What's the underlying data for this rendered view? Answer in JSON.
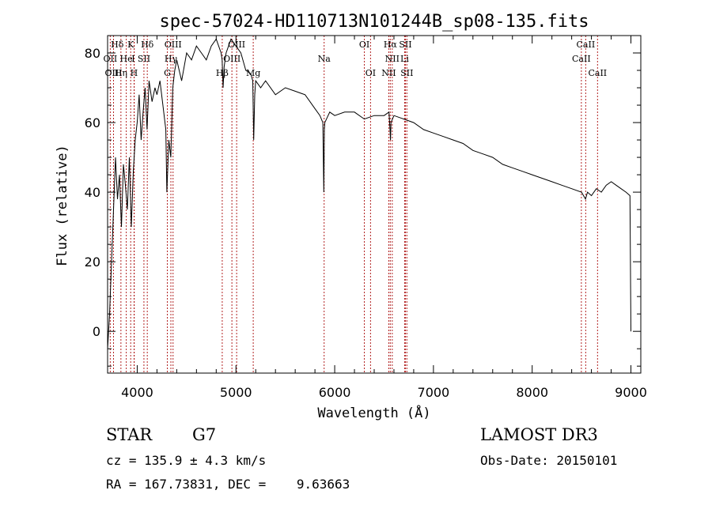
{
  "chart_data": {
    "type": "line",
    "title": "spec-57024-HD110713N101244B_sp08-135.fits",
    "xlabel": "Wavelength (Å)",
    "ylabel": "Flux (relative)",
    "xlim": [
      3700,
      9100
    ],
    "ylim": [
      -12,
      85
    ],
    "xticks": [
      4000,
      5000,
      6000,
      7000,
      8000,
      9000
    ],
    "yticks": [
      0,
      20,
      40,
      60,
      80
    ],
    "grid": false,
    "series": [
      {
        "name": "spectrum",
        "x": [
          3700,
          3720,
          3740,
          3760,
          3780,
          3800,
          3820,
          3840,
          3860,
          3880,
          3900,
          3920,
          3940,
          3960,
          3980,
          4000,
          4020,
          4040,
          4060,
          4080,
          4100,
          4120,
          4150,
          4180,
          4200,
          4230,
          4260,
          4290,
          4300,
          4320,
          4340,
          4360,
          4380,
          4400,
          4450,
          4500,
          4550,
          4600,
          4650,
          4700,
          4750,
          4800,
          4850,
          4860,
          4870,
          4880,
          4900,
          4950,
          5000,
          5050,
          5100,
          5150,
          5170,
          5180,
          5190,
          5200,
          5250,
          5300,
          5400,
          5500,
          5600,
          5700,
          5800,
          5850,
          5880,
          5890,
          5895,
          5900,
          5950,
          6000,
          6100,
          6200,
          6300,
          6400,
          6500,
          6550,
          6560,
          6565,
          6570,
          6600,
          6700,
          6800,
          6900,
          7000,
          7100,
          7200,
          7300,
          7400,
          7500,
          7600,
          7700,
          7800,
          7900,
          8000,
          8100,
          8200,
          8300,
          8400,
          8500,
          8540,
          8560,
          8600,
          8650,
          8700,
          8750,
          8800,
          8850,
          8900,
          8950,
          8990,
          9000
        ],
        "y": [
          -5,
          5,
          20,
          35,
          50,
          38,
          45,
          30,
          48,
          42,
          35,
          50,
          30,
          46,
          55,
          60,
          68,
          55,
          63,
          70,
          58,
          72,
          66,
          70,
          68,
          72,
          65,
          58,
          40,
          55,
          50,
          70,
          75,
          78,
          72,
          80,
          78,
          82,
          80,
          78,
          82,
          84,
          80,
          78,
          70,
          76,
          80,
          84,
          82,
          80,
          75,
          74,
          72,
          55,
          68,
          72,
          70,
          72,
          68,
          70,
          69,
          68,
          64,
          62,
          60,
          40,
          58,
          60,
          63,
          62,
          63,
          63,
          61,
          62,
          62,
          63,
          58,
          55,
          60,
          62,
          61,
          60,
          58,
          57,
          56,
          55,
          54,
          52,
          51,
          50,
          48,
          47,
          46,
          45,
          44,
          43,
          42,
          41,
          40,
          38,
          40,
          39,
          41,
          40,
          42,
          43,
          42,
          41,
          40,
          39,
          0
        ]
      }
    ],
    "line_markers": [
      {
        "label": "Hδ",
        "x": 4102
      },
      {
        "label": "OII",
        "x": 3727
      },
      {
        "label": "OIII",
        "x": 3760
      },
      {
        "label": "K",
        "x": 3934
      },
      {
        "label": "He",
        "x": 3889
      },
      {
        "label": "Hη",
        "x": 3835
      },
      {
        "label": "I",
        "x": 3970
      },
      {
        "label": "H",
        "x": 3968
      },
      {
        "label": "Hδ",
        "x": 4102
      },
      {
        "label": "SII",
        "x": 4068
      },
      {
        "label": "OIII",
        "x": 4363
      },
      {
        "label": "Hγ",
        "x": 4341
      },
      {
        "label": "G",
        "x": 4305
      },
      {
        "label": "OIII",
        "x": 5007
      },
      {
        "label": "OIII",
        "x": 4959
      },
      {
        "label": "Hβ",
        "x": 4861
      },
      {
        "label": "Mg",
        "x": 5175
      },
      {
        "label": "Na",
        "x": 5893
      },
      {
        "label": "OI",
        "x": 6300
      },
      {
        "label": "OI",
        "x": 6363
      },
      {
        "label": "Hα",
        "x": 6563
      },
      {
        "label": "NII",
        "x": 6548
      },
      {
        "label": "NII",
        "x": 6583
      },
      {
        "label": "SII",
        "x": 6716
      },
      {
        "label": "Li",
        "x": 6708
      },
      {
        "label": "SII",
        "x": 6731
      },
      {
        "label": "CaII",
        "x": 8498
      },
      {
        "label": "CaII",
        "x": 8542
      },
      {
        "label": "CaII",
        "x": 8662
      }
    ],
    "line_label_rows": [
      [
        {
          "label": "Hδ",
          "x": 3798
        },
        {
          "label": "K",
          "x": 3934
        },
        {
          "label": "Hδ",
          "x": 4102
        },
        {
          "label": "OIII",
          "x": 4363
        },
        {
          "label": "OIII",
          "x": 5007
        },
        {
          "label": "OI",
          "x": 6300
        },
        {
          "label": "Hα",
          "x": 6563
        },
        {
          "label": "SII",
          "x": 6716
        },
        {
          "label": "CaII",
          "x": 8542
        }
      ],
      [
        {
          "label": "OII",
          "x": 3727
        },
        {
          "label": "He",
          "x": 3889
        },
        {
          "label": "I",
          "x": 3960
        },
        {
          "label": "SII",
          "x": 4068
        },
        {
          "label": "Hγ",
          "x": 4341
        },
        {
          "label": "OIII",
          "x": 4959
        },
        {
          "label": "Na",
          "x": 5893
        },
        {
          "label": "NII",
          "x": 6583
        },
        {
          "label": "Li",
          "x": 6708
        },
        {
          "label": "CaII",
          "x": 8498
        }
      ],
      [
        {
          "label": "OIII",
          "x": 3760
        },
        {
          "label": "Hη",
          "x": 3835
        },
        {
          "label": "H",
          "x": 3968
        },
        {
          "label": "G",
          "x": 4305
        },
        {
          "label": "Hβ",
          "x": 4861
        },
        {
          "label": "Mg",
          "x": 5175
        },
        {
          "label": "OI",
          "x": 6363
        },
        {
          "label": "NII",
          "x": 6548
        },
        {
          "label": "SII",
          "x": 6731
        },
        {
          "label": "CaII",
          "x": 8662
        }
      ]
    ]
  },
  "info": {
    "object_type": "STAR",
    "subclass": "G7",
    "survey": "LAMOST DR3",
    "redshift": "cz = 135.9 ± 4.3 km/s",
    "obs_date": "Obs-Date: 20150101",
    "coords": "RA = 167.73831, DEC =    9.63663"
  },
  "colors": {
    "marker": "#b22222",
    "axis": "#000000"
  }
}
